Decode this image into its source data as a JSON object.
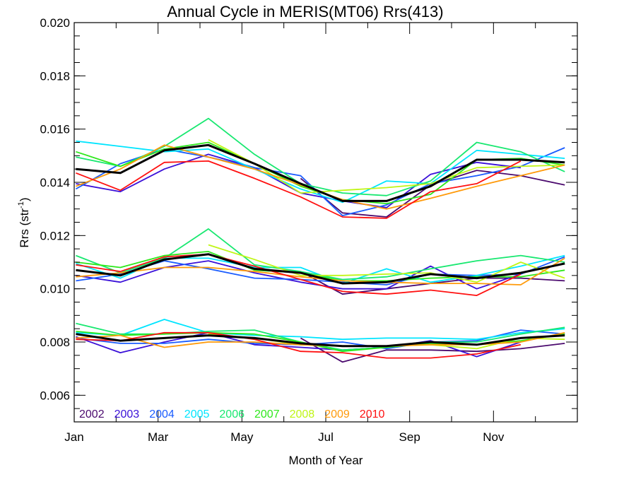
{
  "chart_data": {
    "type": "line",
    "title": "Annual Cycle in MERIS(MT06) Rrs(413)",
    "xlabel": "Month of Year",
    "ylabel": "Rrs (str",
    "ylabel_sup": "-1",
    "ylabel_close": ")",
    "xlim": [
      0,
      12
    ],
    "ylim": [
      0.005,
      0.02
    ],
    "x_ticks": [
      {
        "value": 0,
        "label": "Jan"
      },
      {
        "value": 2,
        "label": "Mar"
      },
      {
        "value": 4,
        "label": "May"
      },
      {
        "value": 6,
        "label": "Jul"
      },
      {
        "value": 8,
        "label": "Sep"
      },
      {
        "value": 10,
        "label": "Nov"
      }
    ],
    "x_minor_ticks": [
      1,
      3,
      5,
      7,
      9,
      11
    ],
    "y_ticks": [
      {
        "value": 0.006,
        "label": "0.006"
      },
      {
        "value": 0.008,
        "label": "0.008"
      },
      {
        "value": 0.01,
        "label": "0.010"
      },
      {
        "value": 0.012,
        "label": "0.012"
      },
      {
        "value": 0.014,
        "label": "0.014"
      },
      {
        "value": 0.016,
        "label": "0.016"
      },
      {
        "value": 0.018,
        "label": "0.018"
      },
      {
        "value": 0.02,
        "label": "0.020"
      }
    ],
    "y_minor_step": 0.0005,
    "grid": false,
    "legend_placement": "bottom-left inside plot",
    "x": [
      0.04,
      1.1,
      2.15,
      3.2,
      4.3,
      5.4,
      6.4,
      7.45,
      8.5,
      9.6,
      10.65,
      11.7
    ],
    "groups": [
      {
        "name": "upper",
        "series": [
          {
            "name": "2002",
            "color": "#4b0a6e",
            "values": [
              null,
              null,
              null,
              null,
              null,
              0.01415,
              0.01285,
              0.0127,
              0.0139,
              0.01445,
              0.01425,
              0.0139
            ]
          },
          {
            "name": "2003",
            "color": "#3a10d8",
            "values": [
              0.01395,
              0.01365,
              0.0145,
              0.01505,
              0.01455,
              0.0136,
              0.0133,
              0.01305,
              0.0143,
              0.01475,
              0.01455,
              null
            ]
          },
          {
            "name": "2004",
            "color": "#1a5cff",
            "values": [
              0.01375,
              0.0147,
              0.01525,
              0.01495,
              0.01455,
              0.01425,
              0.01275,
              0.01315,
              0.01395,
              0.01425,
              0.0146,
              0.0153
            ]
          },
          {
            "name": "2005",
            "color": "#00e5ff",
            "values": [
              0.01555,
              0.01535,
              0.01515,
              0.01525,
              0.0145,
              0.01375,
              0.01325,
              0.01405,
              0.01395,
              0.0152,
              0.01505,
              0.0149
            ]
          },
          {
            "name": "2006",
            "color": "#18e870",
            "values": [
              0.01495,
              0.0146,
              0.01535,
              0.0164,
              0.01505,
              0.01395,
              0.0136,
              0.0135,
              0.01405,
              0.0155,
              0.01515,
              0.0144
            ]
          },
          {
            "name": "2007",
            "color": "#2ee81c",
            "values": [
              0.01515,
              0.0146,
              0.01525,
              0.0155,
              0.0147,
              0.01385,
              0.01335,
              0.0132,
              0.01355,
              0.01485,
              0.0149,
              0.01465
            ]
          },
          {
            "name": "2008",
            "color": "#c0f516",
            "values": [
              null,
              null,
              null,
              0.0156,
              0.0147,
              0.0136,
              0.0137,
              0.0138,
              0.01395,
              0.01455,
              0.0146,
              0.01465
            ]
          },
          {
            "name": "2009",
            "color": "#ff9a0a",
            "values": [
              0.01385,
              0.0145,
              0.0154,
              0.01495,
              0.0145,
              0.0139,
              0.01335,
              0.013,
              0.0134,
              0.01385,
              0.01425,
              0.01465
            ]
          },
          {
            "name": "2010",
            "color": "#ff1010",
            "values": [
              0.01435,
              0.0137,
              0.01475,
              0.0148,
              0.01415,
              0.01345,
              0.0127,
              0.01265,
              0.01365,
              0.01395,
              0.0148,
              null
            ]
          },
          {
            "name": "mean",
            "color": "#000000",
            "values": [
              0.0145,
              0.01435,
              0.0152,
              0.0154,
              0.0147,
              0.01395,
              0.0133,
              0.0133,
              0.01385,
              0.01485,
              0.01485,
              0.01475
            ]
          }
        ]
      },
      {
        "name": "middle",
        "series": [
          {
            "name": "2002",
            "color": "#4b0a6e",
            "values": [
              null,
              null,
              null,
              null,
              null,
              0.01065,
              0.0098,
              0.01,
              0.0102,
              0.0104,
              0.0104,
              0.0103
            ]
          },
          {
            "name": "2003",
            "color": "#3a10d8",
            "values": [
              0.0105,
              0.01025,
              0.0108,
              0.01105,
              0.0106,
              0.01025,
              0.01,
              0.01,
              0.01085,
              0.01,
              0.01055,
              null
            ]
          },
          {
            "name": "2004",
            "color": "#1a5cff",
            "values": [
              0.0103,
              0.01055,
              0.01105,
              0.01075,
              0.0104,
              0.01035,
              0.01025,
              0.01015,
              0.01055,
              0.0105,
              0.01055,
              0.0112
            ]
          },
          {
            "name": "2005",
            "color": "#00e5ff",
            "values": [
              0.01095,
              0.0104,
              0.01115,
              0.01115,
              0.0108,
              0.0108,
              0.0102,
              0.01075,
              0.01025,
              0.0105,
              0.01085,
              0.01125
            ]
          },
          {
            "name": "2006",
            "color": "#18e870",
            "values": [
              0.01125,
              0.0106,
              0.01115,
              0.01225,
              0.0109,
              0.01065,
              0.01035,
              0.01045,
              0.01075,
              0.01105,
              0.01125,
              0.011
            ]
          },
          {
            "name": "2007",
            "color": "#2ee81c",
            "values": [
              0.011,
              0.0108,
              0.01125,
              0.0114,
              0.0107,
              0.0106,
              0.0103,
              0.0103,
              0.0104,
              0.01045,
              0.01045,
              0.0107
            ]
          },
          {
            "name": "2008",
            "color": "#c0f516",
            "values": [
              null,
              null,
              null,
              0.01165,
              0.0111,
              0.0105,
              0.0105,
              0.01055,
              0.0106,
              0.01025,
              0.011,
              0.0104
            ]
          },
          {
            "name": "2009",
            "color": "#ff9a0a",
            "values": [
              0.01045,
              0.0106,
              0.0108,
              0.0108,
              0.01065,
              0.01045,
              0.0103,
              0.01025,
              0.0102,
              0.0102,
              0.01015,
              0.01115
            ]
          },
          {
            "name": "2010",
            "color": "#ff1010",
            "values": [
              0.0109,
              0.01065,
              0.0112,
              0.0113,
              0.01085,
              0.01035,
              0.0099,
              0.0098,
              0.00995,
              0.00975,
              0.01055,
              null
            ]
          },
          {
            "name": "mean",
            "color": "#000000",
            "values": [
              0.0107,
              0.0105,
              0.0111,
              0.0113,
              0.01075,
              0.0106,
              0.0102,
              0.01025,
              0.01055,
              0.0104,
              0.0106,
              0.01095
            ]
          }
        ]
      },
      {
        "name": "lower",
        "series": [
          {
            "name": "2002",
            "color": "#4b0a6e",
            "values": [
              null,
              null,
              null,
              null,
              null,
              0.00815,
              0.00725,
              0.0077,
              0.0077,
              0.00765,
              0.00775,
              0.00795
            ]
          },
          {
            "name": "2003",
            "color": "#3a10d8",
            "values": [
              0.0082,
              0.0076,
              0.008,
              0.00835,
              0.0079,
              0.0078,
              0.0077,
              0.0078,
              0.00805,
              0.00745,
              0.008,
              null
            ]
          },
          {
            "name": "2004",
            "color": "#1a5cff",
            "values": [
              0.00815,
              0.00795,
              0.00795,
              0.0081,
              0.00795,
              0.0079,
              0.008,
              0.00775,
              0.008,
              0.00805,
              0.00845,
              0.0083
            ]
          },
          {
            "name": "2005",
            "color": "#00e5ff",
            "values": [
              0.00835,
              0.00825,
              0.00885,
              0.00835,
              0.00825,
              0.0082,
              0.0081,
              0.00815,
              0.00815,
              0.0081,
              0.00835,
              0.0085
            ]
          },
          {
            "name": "2006",
            "color": "#18e870",
            "values": [
              0.0087,
              0.0083,
              0.0083,
              0.0084,
              0.00845,
              0.008,
              0.0077,
              0.0078,
              0.008,
              0.008,
              0.0083,
              0.00855
            ]
          },
          {
            "name": "2007",
            "color": "#2ee81c",
            "values": [
              0.0084,
              0.00825,
              0.0083,
              0.00835,
              0.0083,
              0.008,
              0.00765,
              0.0078,
              0.00795,
              0.0079,
              0.00805,
              0.0083
            ]
          },
          {
            "name": "2008",
            "color": "#c0f516",
            "values": [
              null,
              null,
              null,
              0.0083,
              0.00815,
              0.0079,
              0.00785,
              0.00785,
              0.0079,
              0.00775,
              0.00815,
              0.0081
            ]
          },
          {
            "name": "2009",
            "color": "#ff9a0a",
            "values": [
              0.00815,
              0.00825,
              0.0078,
              0.008,
              0.008,
              0.0079,
              0.00785,
              0.00785,
              0.0079,
              0.0079,
              0.008,
              0.00835
            ]
          },
          {
            "name": "2010",
            "color": "#ff1010",
            "values": [
              0.0081,
              0.00805,
              0.00835,
              0.00835,
              0.0081,
              0.00765,
              0.0076,
              0.0074,
              0.0074,
              0.00755,
              0.0079,
              null
            ]
          },
          {
            "name": "mean",
            "color": "#000000",
            "values": [
              0.0083,
              0.00805,
              0.00815,
              0.00825,
              0.00815,
              0.00795,
              0.00785,
              0.00785,
              0.008,
              0.0079,
              0.00815,
              0.00825
            ]
          }
        ]
      }
    ],
    "legend": [
      {
        "label": "2002",
        "color": "#4b0a6e"
      },
      {
        "label": "2003",
        "color": "#3a10d8"
      },
      {
        "label": "2004",
        "color": "#1a5cff"
      },
      {
        "label": "2005",
        "color": "#00e5ff"
      },
      {
        "label": "2006",
        "color": "#18e870"
      },
      {
        "label": "2007",
        "color": "#2ee81c"
      },
      {
        "label": "2008",
        "color": "#c0f516"
      },
      {
        "label": "2009",
        "color": "#ff9a0a"
      },
      {
        "label": "2010",
        "color": "#ff1010"
      }
    ]
  }
}
